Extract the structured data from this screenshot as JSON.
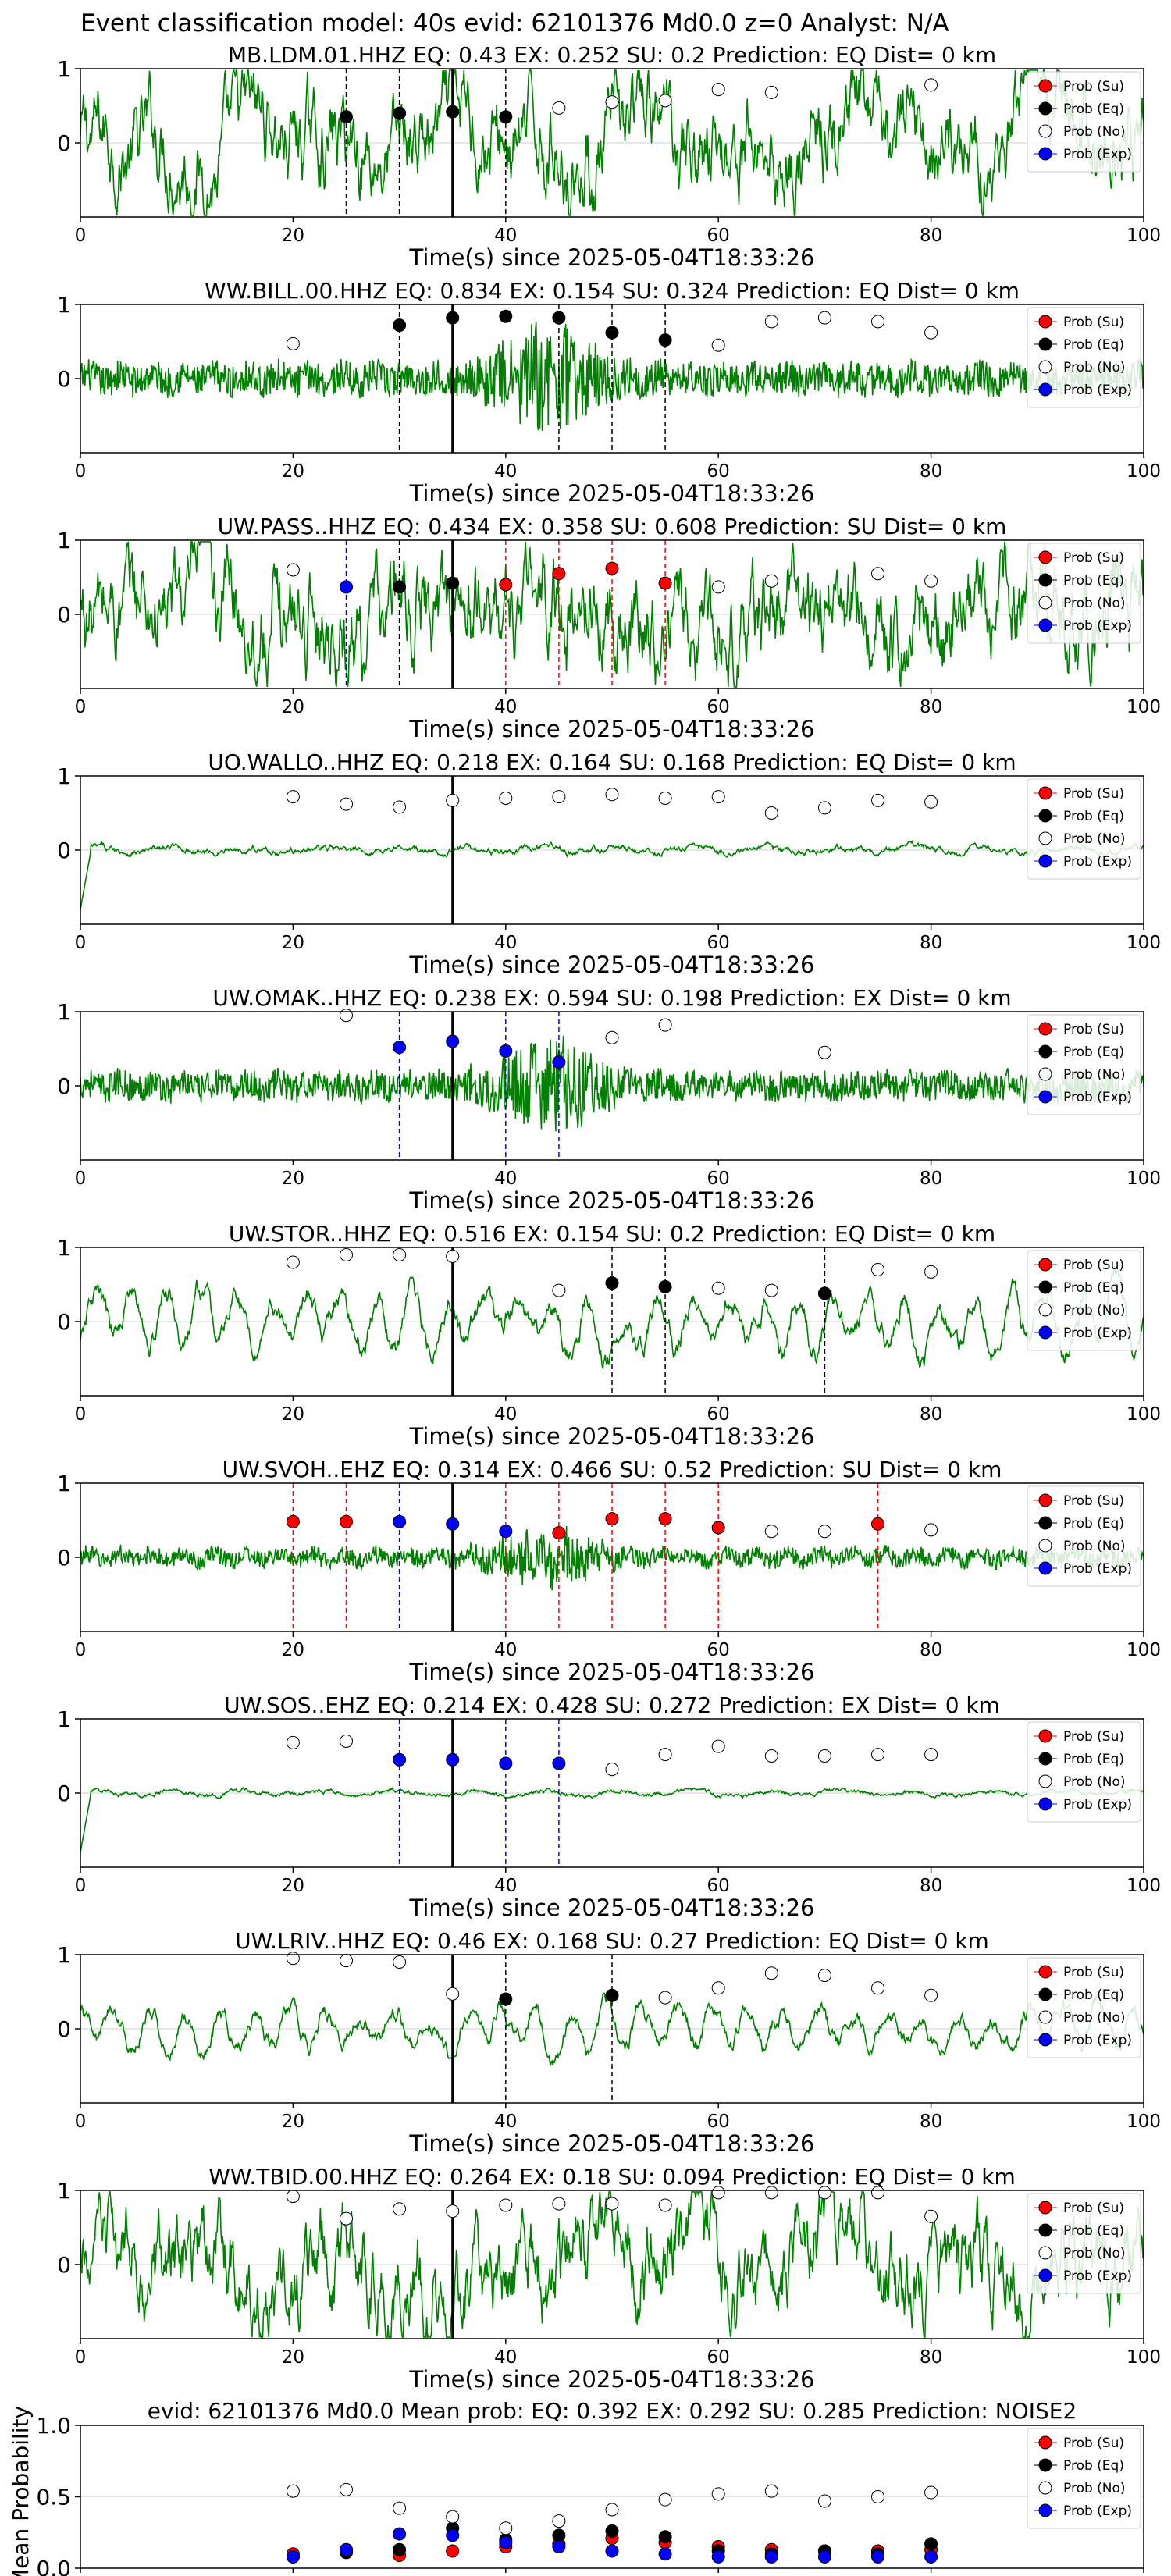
{
  "figure_title": "Event classification model: 40s evid: 62101376 Md0.0 z=0 Analyst: N/A",
  "chart_data": {
    "type": "scatter",
    "shared": {
      "xlim": [
        0,
        100
      ],
      "xticks": [
        0,
        20,
        40,
        60,
        80,
        100
      ],
      "xlabel": "Time(s) since 2025-05-04T18:33:26",
      "ylim": [
        -1,
        1
      ],
      "yticks": [
        1,
        0
      ],
      "prob_times": [
        20,
        25,
        30,
        35,
        40,
        45,
        50,
        55,
        60,
        65,
        70,
        75,
        80
      ],
      "origin_time": 35,
      "legend": {
        "placement": "top-right",
        "entries": [
          {
            "label": "Prob (Su)",
            "color": "#ff0000"
          },
          {
            "label": "Prob (Eq)",
            "color": "#000000"
          },
          {
            "label": "Prob (No)",
            "color": "#ffffff"
          },
          {
            "label": "Prob (Exp)",
            "color": "#0000ff"
          }
        ]
      },
      "colors": {
        "waveform": "#008000",
        "su": "#ff0000",
        "eq": "#000000",
        "exp": "#0000ff",
        "noise": "#ffffff",
        "origin_line": "#000000"
      }
    },
    "panels": [
      {
        "title": "MB.LDM.01.HHZ   EQ: 0.43   EX: 0.252   SU: 0.2   Prediction: EQ    Dist= 0 km",
        "waveform_style": "broadband",
        "waveform_amplitude": 0.55,
        "points": [
          {
            "x": 25,
            "y": 0.35,
            "class": "eq"
          },
          {
            "x": 30,
            "y": 0.4,
            "class": "eq"
          },
          {
            "x": 35,
            "y": 0.42,
            "class": "eq"
          },
          {
            "x": 40,
            "y": 0.35,
            "class": "eq"
          },
          {
            "x": 45,
            "y": 0.47,
            "class": "noise"
          },
          {
            "x": 50,
            "y": 0.55,
            "class": "noise"
          },
          {
            "x": 55,
            "y": 0.57,
            "class": "noise"
          },
          {
            "x": 60,
            "y": 0.72,
            "class": "noise"
          },
          {
            "x": 65,
            "y": 0.68,
            "class": "noise"
          },
          {
            "x": 80,
            "y": 0.78,
            "class": "noise"
          }
        ],
        "pick_lines": [
          {
            "x": 25,
            "class": "eq"
          },
          {
            "x": 30,
            "class": "eq"
          },
          {
            "x": 40,
            "class": "eq"
          }
        ]
      },
      {
        "title": "WW.BILL.00.HHZ   EQ: 0.834   EX: 0.154   SU: 0.324   Prediction: EQ    Dist= 0 km",
        "waveform_style": "burst",
        "waveform_amplitude": 0.22,
        "points": [
          {
            "x": 20,
            "y": 0.47,
            "class": "noise"
          },
          {
            "x": 30,
            "y": 0.72,
            "class": "eq"
          },
          {
            "x": 35,
            "y": 0.82,
            "class": "eq"
          },
          {
            "x": 40,
            "y": 0.84,
            "class": "eq"
          },
          {
            "x": 45,
            "y": 0.82,
            "class": "eq"
          },
          {
            "x": 50,
            "y": 0.62,
            "class": "eq"
          },
          {
            "x": 55,
            "y": 0.52,
            "class": "eq"
          },
          {
            "x": 60,
            "y": 0.45,
            "class": "noise"
          },
          {
            "x": 65,
            "y": 0.77,
            "class": "noise"
          },
          {
            "x": 70,
            "y": 0.82,
            "class": "noise"
          },
          {
            "x": 75,
            "y": 0.77,
            "class": "noise"
          },
          {
            "x": 80,
            "y": 0.62,
            "class": "noise"
          }
        ],
        "pick_lines": [
          {
            "x": 30,
            "class": "eq"
          },
          {
            "x": 45,
            "class": "eq"
          },
          {
            "x": 50,
            "class": "eq"
          },
          {
            "x": 55,
            "class": "eq"
          }
        ]
      },
      {
        "title": "UW.PASS..HHZ   EQ: 0.434   EX: 0.358   SU: 0.608   Prediction: SU    Dist= 0 km",
        "waveform_style": "broadband",
        "waveform_amplitude": 0.6,
        "points": [
          {
            "x": 20,
            "y": 0.6,
            "class": "noise"
          },
          {
            "x": 25,
            "y": 0.37,
            "class": "exp"
          },
          {
            "x": 30,
            "y": 0.37,
            "class": "eq"
          },
          {
            "x": 35,
            "y": 0.42,
            "class": "eq"
          },
          {
            "x": 40,
            "y": 0.4,
            "class": "su"
          },
          {
            "x": 45,
            "y": 0.55,
            "class": "su"
          },
          {
            "x": 50,
            "y": 0.62,
            "class": "su"
          },
          {
            "x": 55,
            "y": 0.42,
            "class": "su"
          },
          {
            "x": 60,
            "y": 0.37,
            "class": "noise"
          },
          {
            "x": 65,
            "y": 0.45,
            "class": "noise"
          },
          {
            "x": 75,
            "y": 0.55,
            "class": "noise"
          },
          {
            "x": 80,
            "y": 0.45,
            "class": "noise"
          }
        ],
        "pick_lines": [
          {
            "x": 25,
            "class": "exp"
          },
          {
            "x": 30,
            "class": "eq"
          },
          {
            "x": 40,
            "class": "su"
          },
          {
            "x": 45,
            "class": "su"
          },
          {
            "x": 50,
            "class": "su"
          },
          {
            "x": 55,
            "class": "su"
          }
        ]
      },
      {
        "title": "UO.WALLO..HHZ   EQ: 0.218   EX: 0.164   SU: 0.168   Prediction: EQ    Dist= 0 km",
        "waveform_style": "quiet",
        "waveform_amplitude": 0.06,
        "points": [
          {
            "x": 20,
            "y": 0.72,
            "class": "noise"
          },
          {
            "x": 25,
            "y": 0.62,
            "class": "noise"
          },
          {
            "x": 30,
            "y": 0.58,
            "class": "noise"
          },
          {
            "x": 35,
            "y": 0.67,
            "class": "noise"
          },
          {
            "x": 40,
            "y": 0.7,
            "class": "noise"
          },
          {
            "x": 45,
            "y": 0.72,
            "class": "noise"
          },
          {
            "x": 50,
            "y": 0.75,
            "class": "noise"
          },
          {
            "x": 55,
            "y": 0.7,
            "class": "noise"
          },
          {
            "x": 60,
            "y": 0.72,
            "class": "noise"
          },
          {
            "x": 65,
            "y": 0.5,
            "class": "noise"
          },
          {
            "x": 70,
            "y": 0.57,
            "class": "noise"
          },
          {
            "x": 75,
            "y": 0.67,
            "class": "noise"
          },
          {
            "x": 80,
            "y": 0.65,
            "class": "noise"
          }
        ],
        "pick_lines": []
      },
      {
        "title": "UW.OMAK..HHZ   EQ: 0.238   EX: 0.594   SU: 0.198   Prediction: EX    Dist= 0 km",
        "waveform_style": "burst",
        "waveform_amplitude": 0.2,
        "points": [
          {
            "x": 25,
            "y": 0.95,
            "class": "noise"
          },
          {
            "x": 30,
            "y": 0.52,
            "class": "exp"
          },
          {
            "x": 35,
            "y": 0.6,
            "class": "exp"
          },
          {
            "x": 40,
            "y": 0.47,
            "class": "exp"
          },
          {
            "x": 45,
            "y": 0.32,
            "class": "exp"
          },
          {
            "x": 50,
            "y": 0.65,
            "class": "noise"
          },
          {
            "x": 55,
            "y": 0.82,
            "class": "noise"
          },
          {
            "x": 70,
            "y": 0.45,
            "class": "noise"
          }
        ],
        "pick_lines": [
          {
            "x": 30,
            "class": "exp"
          },
          {
            "x": 40,
            "class": "exp"
          },
          {
            "x": 45,
            "class": "exp"
          }
        ]
      },
      {
        "title": "UW.STOR..HHZ   EQ: 0.516   EX: 0.154   SU: 0.2   Prediction: EQ    Dist= 0 km",
        "waveform_style": "lowfreq",
        "waveform_amplitude": 0.55,
        "points": [
          {
            "x": 20,
            "y": 0.8,
            "class": "noise"
          },
          {
            "x": 25,
            "y": 0.9,
            "class": "noise"
          },
          {
            "x": 30,
            "y": 0.9,
            "class": "noise"
          },
          {
            "x": 35,
            "y": 0.88,
            "class": "noise"
          },
          {
            "x": 45,
            "y": 0.42,
            "class": "noise"
          },
          {
            "x": 50,
            "y": 0.52,
            "class": "eq"
          },
          {
            "x": 55,
            "y": 0.47,
            "class": "eq"
          },
          {
            "x": 60,
            "y": 0.45,
            "class": "noise"
          },
          {
            "x": 65,
            "y": 0.42,
            "class": "noise"
          },
          {
            "x": 70,
            "y": 0.38,
            "class": "eq"
          },
          {
            "x": 75,
            "y": 0.7,
            "class": "noise"
          },
          {
            "x": 80,
            "y": 0.67,
            "class": "noise"
          }
        ],
        "pick_lines": [
          {
            "x": 50,
            "class": "eq"
          },
          {
            "x": 55,
            "class": "eq"
          },
          {
            "x": 70,
            "class": "eq"
          }
        ]
      },
      {
        "title": "UW.SVOH..EHZ   EQ: 0.314   EX: 0.466   SU: 0.52   Prediction: SU    Dist= 0 km",
        "waveform_style": "burst",
        "waveform_amplitude": 0.12,
        "points": [
          {
            "x": 20,
            "y": 0.48,
            "class": "su"
          },
          {
            "x": 25,
            "y": 0.48,
            "class": "su"
          },
          {
            "x": 30,
            "y": 0.48,
            "class": "exp"
          },
          {
            "x": 35,
            "y": 0.45,
            "class": "exp"
          },
          {
            "x": 40,
            "y": 0.35,
            "class": "exp"
          },
          {
            "x": 45,
            "y": 0.33,
            "class": "su"
          },
          {
            "x": 50,
            "y": 0.52,
            "class": "su"
          },
          {
            "x": 55,
            "y": 0.52,
            "class": "su"
          },
          {
            "x": 60,
            "y": 0.4,
            "class": "su"
          },
          {
            "x": 65,
            "y": 0.35,
            "class": "noise"
          },
          {
            "x": 70,
            "y": 0.35,
            "class": "noise"
          },
          {
            "x": 75,
            "y": 0.45,
            "class": "su"
          },
          {
            "x": 80,
            "y": 0.37,
            "class": "noise"
          }
        ],
        "pick_lines": [
          {
            "x": 20,
            "class": "su"
          },
          {
            "x": 25,
            "class": "su"
          },
          {
            "x": 30,
            "class": "exp"
          },
          {
            "x": 40,
            "class": "su"
          },
          {
            "x": 45,
            "class": "su"
          },
          {
            "x": 50,
            "class": "su"
          },
          {
            "x": 55,
            "class": "su"
          },
          {
            "x": 60,
            "class": "su"
          },
          {
            "x": 75,
            "class": "su"
          }
        ]
      },
      {
        "title": "UW.SOS..EHZ   EQ: 0.214   EX: 0.428   SU: 0.272   Prediction: EX    Dist= 0 km",
        "waveform_style": "quiet",
        "waveform_amplitude": 0.04,
        "points": [
          {
            "x": 20,
            "y": 0.68,
            "class": "noise"
          },
          {
            "x": 25,
            "y": 0.7,
            "class": "noise"
          },
          {
            "x": 30,
            "y": 0.45,
            "class": "exp"
          },
          {
            "x": 35,
            "y": 0.45,
            "class": "exp"
          },
          {
            "x": 40,
            "y": 0.4,
            "class": "exp"
          },
          {
            "x": 45,
            "y": 0.4,
            "class": "exp"
          },
          {
            "x": 50,
            "y": 0.32,
            "class": "noise"
          },
          {
            "x": 55,
            "y": 0.52,
            "class": "noise"
          },
          {
            "x": 60,
            "y": 0.63,
            "class": "noise"
          },
          {
            "x": 65,
            "y": 0.5,
            "class": "noise"
          },
          {
            "x": 70,
            "y": 0.5,
            "class": "noise"
          },
          {
            "x": 75,
            "y": 0.52,
            "class": "noise"
          },
          {
            "x": 80,
            "y": 0.52,
            "class": "noise"
          }
        ],
        "pick_lines": [
          {
            "x": 30,
            "class": "exp"
          },
          {
            "x": 35,
            "class": "exp"
          },
          {
            "x": 40,
            "class": "exp"
          },
          {
            "x": 45,
            "class": "exp"
          }
        ]
      },
      {
        "title": "UW.LRIV..HHZ   EQ: 0.46   EX: 0.168   SU: 0.27   Prediction: EQ    Dist= 0 km",
        "waveform_style": "lowfreq",
        "waveform_amplitude": 0.4,
        "points": [
          {
            "x": 20,
            "y": 0.95,
            "class": "noise"
          },
          {
            "x": 25,
            "y": 0.92,
            "class": "noise"
          },
          {
            "x": 30,
            "y": 0.9,
            "class": "noise"
          },
          {
            "x": 35,
            "y": 0.47,
            "class": "noise"
          },
          {
            "x": 40,
            "y": 0.4,
            "class": "eq"
          },
          {
            "x": 50,
            "y": 0.45,
            "class": "eq"
          },
          {
            "x": 55,
            "y": 0.42,
            "class": "noise"
          },
          {
            "x": 60,
            "y": 0.55,
            "class": "noise"
          },
          {
            "x": 65,
            "y": 0.75,
            "class": "noise"
          },
          {
            "x": 70,
            "y": 0.72,
            "class": "noise"
          },
          {
            "x": 75,
            "y": 0.55,
            "class": "noise"
          },
          {
            "x": 80,
            "y": 0.45,
            "class": "noise"
          }
        ],
        "pick_lines": [
          {
            "x": 40,
            "class": "eq"
          },
          {
            "x": 50,
            "class": "eq"
          }
        ]
      },
      {
        "title": "WW.TBID.00.HHZ   EQ: 0.264   EX: 0.18   SU: 0.094   Prediction: EQ    Dist= 0 km",
        "waveform_style": "broadband",
        "waveform_amplitude": 0.55,
        "points": [
          {
            "x": 20,
            "y": 0.92,
            "class": "noise"
          },
          {
            "x": 25,
            "y": 0.62,
            "class": "noise"
          },
          {
            "x": 30,
            "y": 0.75,
            "class": "noise"
          },
          {
            "x": 35,
            "y": 0.72,
            "class": "noise"
          },
          {
            "x": 40,
            "y": 0.8,
            "class": "noise"
          },
          {
            "x": 45,
            "y": 0.82,
            "class": "noise"
          },
          {
            "x": 50,
            "y": 0.82,
            "class": "noise"
          },
          {
            "x": 55,
            "y": 0.8,
            "class": "noise"
          },
          {
            "x": 60,
            "y": 0.97,
            "class": "noise"
          },
          {
            "x": 65,
            "y": 0.97,
            "class": "noise"
          },
          {
            "x": 70,
            "y": 0.97,
            "class": "noise"
          },
          {
            "x": 75,
            "y": 0.97,
            "class": "noise"
          },
          {
            "x": 80,
            "y": 0.65,
            "class": "noise"
          }
        ],
        "pick_lines": []
      }
    ],
    "summary": {
      "title": "evid: 62101376  Md0.0   Mean prob:   EQ: 0.392   EX: 0.292   SU: 0.285   Prediction: NOISE2",
      "ylabel": "Mean Probability",
      "ylim": [
        0,
        1
      ],
      "yticks": [
        "0.0",
        "0.5",
        "1.0"
      ],
      "x": [
        20,
        25,
        30,
        35,
        40,
        45,
        50,
        55,
        60,
        65,
        70,
        75,
        80
      ],
      "series": [
        {
          "name": "Prob (Su)",
          "class": "su",
          "values": [
            0.1,
            0.12,
            0.09,
            0.12,
            0.15,
            0.17,
            0.21,
            0.18,
            0.15,
            0.13,
            0.12,
            0.12,
            0.13
          ]
        },
        {
          "name": "Prob (Eq)",
          "class": "eq",
          "values": [
            0.08,
            0.11,
            0.13,
            0.28,
            0.2,
            0.23,
            0.26,
            0.22,
            0.12,
            0.1,
            0.12,
            0.1,
            0.17
          ]
        },
        {
          "name": "Prob (No)",
          "class": "noise",
          "values": [
            0.54,
            0.55,
            0.42,
            0.36,
            0.28,
            0.33,
            0.41,
            0.48,
            0.52,
            0.54,
            0.47,
            0.5,
            0.53
          ]
        },
        {
          "name": "Prob (Exp)",
          "class": "exp",
          "values": [
            0.08,
            0.13,
            0.24,
            0.23,
            0.18,
            0.15,
            0.12,
            0.1,
            0.08,
            0.08,
            0.08,
            0.08,
            0.08
          ]
        }
      ]
    }
  }
}
